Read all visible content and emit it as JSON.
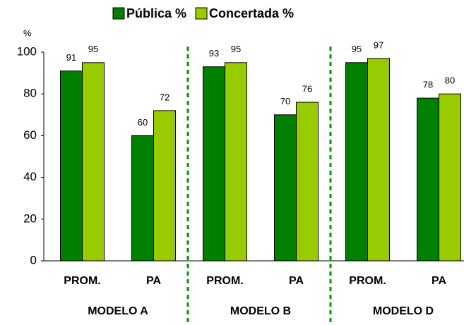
{
  "chart_data": {
    "type": "bar",
    "y_axis_label": "%",
    "categories": [
      "PROM.",
      "PA",
      "PROM.",
      "PA",
      "PROM.",
      "PA"
    ],
    "groups": [
      "MODELO A",
      "MODELO B",
      "MODELO D"
    ],
    "series": [
      {
        "name": "Pública %",
        "color": "#008000",
        "values": [
          91,
          60,
          93,
          70,
          95,
          78
        ]
      },
      {
        "name": "Concertada %",
        "color": "#99cc00",
        "values": [
          95,
          72,
          95,
          76,
          97,
          80
        ]
      }
    ],
    "ylim": [
      0,
      100
    ],
    "yticks": [
      0,
      20,
      40,
      60,
      80,
      100
    ]
  }
}
